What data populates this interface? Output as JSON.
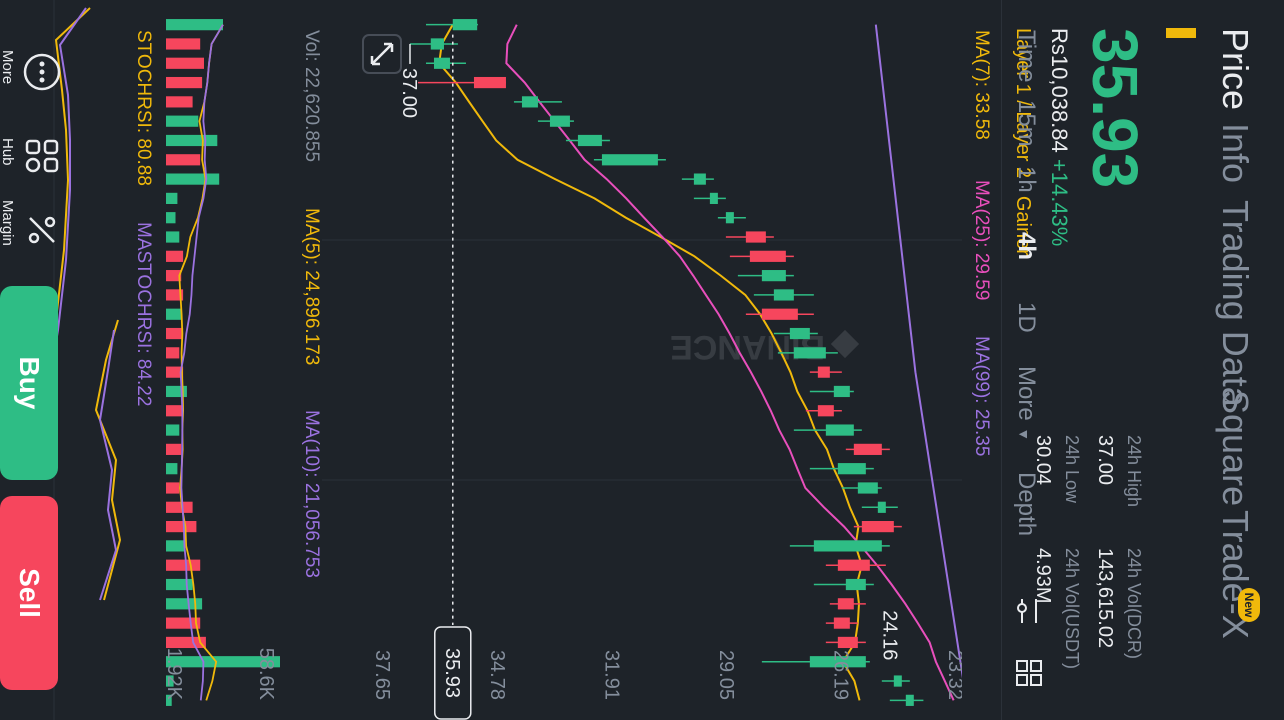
{
  "header": {
    "tabs": [
      "Price",
      "Info",
      "Trading Data",
      "Square",
      "Trade-X"
    ],
    "new_badge": "New",
    "price": "35.93",
    "fiat_price": "Rs10,038.84",
    "change": "+14.43%",
    "tags": [
      "Layer 1 / Layer 2",
      "Gainer"
    ],
    "stats": {
      "high_label": "24h High",
      "high": "37.00",
      "low_label": "24h Low",
      "low": "30.04",
      "vol_dcr_label": "24h Vol(DCR)",
      "vol_dcr": "143,615.02",
      "vol_usdt_label": "24h Vol(USDT)",
      "vol_usdt": "4.93M"
    }
  },
  "timeframes": [
    "Time",
    "15m",
    "1h",
    "4h",
    "1D",
    "More",
    "Depth"
  ],
  "active_timeframe": "4h",
  "indicators": {
    "ma7": "MA(7): 33.58",
    "ma25": "MA(25): 29.59",
    "ma99": "MA(99): 25.35",
    "vol": "Vol: 22,620.855",
    "ma5": "MA(5): 24,896.173",
    "ma10": "MA(10): 21,056.753",
    "stochrsi": "STOCHRSI: 80.88",
    "mastochrsi": "MASTOCHRSI: 84.22"
  },
  "chart_data": {
    "type": "candlestick",
    "price_axis_ticks": [
      "37.65",
      "34.78",
      "31.91",
      "29.05",
      "26.19",
      "23.32"
    ],
    "current_price_tag": "35.93",
    "high_marker": "37.00",
    "low_marker": "24.16",
    "volume_axis_ticks": [
      "58.6K",
      "1.92K"
    ],
    "watermark": "BINANCE",
    "candles": [
      {
        "o": 35.32,
        "c": 35.93,
        "h": 36.6,
        "l": 35.3
      },
      {
        "o": 36.15,
        "c": 36.48,
        "h": 37.0,
        "l": 35.8
      },
      {
        "o": 36.0,
        "c": 36.4,
        "h": 36.6,
        "l": 35.6
      },
      {
        "o": 35.4,
        "c": 34.6,
        "h": 36.8,
        "l": 34.6
      },
      {
        "o": 33.8,
        "c": 34.2,
        "h": 34.4,
        "l": 33.2
      },
      {
        "o": 33.0,
        "c": 33.5,
        "h": 33.8,
        "l": 32.9
      },
      {
        "o": 32.2,
        "c": 32.8,
        "h": 33.1,
        "l": 32.0
      },
      {
        "o": 30.8,
        "c": 32.2,
        "h": 32.4,
        "l": 30.6
      },
      {
        "o": 29.6,
        "c": 29.9,
        "h": 30.2,
        "l": 29.4
      },
      {
        "o": 29.3,
        "c": 29.5,
        "h": 29.9,
        "l": 29.1
      },
      {
        "o": 28.9,
        "c": 29.1,
        "h": 29.3,
        "l": 28.6
      },
      {
        "o": 28.6,
        "c": 28.1,
        "h": 29.1,
        "l": 27.9
      },
      {
        "o": 28.5,
        "c": 27.6,
        "h": 29.0,
        "l": 27.4
      },
      {
        "o": 27.6,
        "c": 28.2,
        "h": 28.8,
        "l": 27.4
      },
      {
        "o": 27.4,
        "c": 27.9,
        "h": 28.4,
        "l": 26.9
      },
      {
        "o": 28.2,
        "c": 27.3,
        "h": 28.6,
        "l": 26.9
      },
      {
        "o": 27.0,
        "c": 27.5,
        "h": 27.9,
        "l": 26.8
      },
      {
        "o": 26.6,
        "c": 27.4,
        "h": 27.8,
        "l": 26.3
      },
      {
        "o": 26.8,
        "c": 26.5,
        "h": 27.0,
        "l": 26.2
      },
      {
        "o": 26.0,
        "c": 26.4,
        "h": 27.0,
        "l": 25.9
      },
      {
        "o": 26.8,
        "c": 26.4,
        "h": 27.1,
        "l": 26.2
      },
      {
        "o": 25.9,
        "c": 26.6,
        "h": 27.4,
        "l": 25.7
      },
      {
        "o": 25.9,
        "c": 25.2,
        "h": 26.1,
        "l": 25.0
      },
      {
        "o": 25.6,
        "c": 26.3,
        "h": 27.0,
        "l": 25.4
      },
      {
        "o": 25.3,
        "c": 25.8,
        "h": 26.2,
        "l": 25.2
      },
      {
        "o": 25.1,
        "c": 25.3,
        "h": 25.7,
        "l": 24.8
      },
      {
        "o": 25.7,
        "c": 24.9,
        "h": 25.9,
        "l": 24.7
      },
      {
        "o": 25.2,
        "c": 26.9,
        "h": 27.5,
        "l": 25.0
      },
      {
        "o": 26.3,
        "c": 25.5,
        "h": 26.6,
        "l": 25.1
      },
      {
        "o": 25.6,
        "c": 26.1,
        "h": 26.9,
        "l": 25.4
      },
      {
        "o": 26.3,
        "c": 25.9,
        "h": 26.5,
        "l": 25.6
      },
      {
        "o": 26.4,
        "c": 26.0,
        "h": 26.6,
        "l": 25.8
      },
      {
        "o": 26.3,
        "c": 25.8,
        "h": 26.6,
        "l": 25.6
      },
      {
        "o": 25.6,
        "c": 27.0,
        "h": 28.2,
        "l": 25.5
      },
      {
        "o": 24.7,
        "c": 24.9,
        "h": 25.2,
        "l": 24.5
      },
      {
        "o": 24.4,
        "c": 24.6,
        "h": 25.0,
        "l": 24.16
      }
    ],
    "volume": [
      {
        "v": 15000,
        "up": true
      },
      {
        "v": 9000,
        "up": false
      },
      {
        "v": 10000,
        "up": false
      },
      {
        "v": 9500,
        "up": false
      },
      {
        "v": 7000,
        "up": false
      },
      {
        "v": 8500,
        "up": true
      },
      {
        "v": 13500,
        "up": true
      },
      {
        "v": 9000,
        "up": false
      },
      {
        "v": 14000,
        "up": true
      },
      {
        "v": 3000,
        "up": true
      },
      {
        "v": 2500,
        "up": true
      },
      {
        "v": 3500,
        "up": true
      },
      {
        "v": 4500,
        "up": false
      },
      {
        "v": 4000,
        "up": false
      },
      {
        "v": 4500,
        "up": false
      },
      {
        "v": 4000,
        "up": true
      },
      {
        "v": 4500,
        "up": false
      },
      {
        "v": 3500,
        "up": false
      },
      {
        "v": 4500,
        "up": false
      },
      {
        "v": 5500,
        "up": true
      },
      {
        "v": 4500,
        "up": false
      },
      {
        "v": 3500,
        "up": true
      },
      {
        "v": 4000,
        "up": false
      },
      {
        "v": 3000,
        "up": true
      },
      {
        "v": 3500,
        "up": false
      },
      {
        "v": 7000,
        "up": false
      },
      {
        "v": 8000,
        "up": false
      },
      {
        "v": 5000,
        "up": true
      },
      {
        "v": 9000,
        "up": false
      },
      {
        "v": 7000,
        "up": true
      },
      {
        "v": 9500,
        "up": true
      },
      {
        "v": 9000,
        "up": false
      },
      {
        "v": 10500,
        "up": false
      },
      {
        "v": 30000,
        "up": true
      },
      {
        "v": 2000,
        "up": true
      },
      {
        "v": 1500,
        "up": true
      }
    ]
  },
  "bottom_nav": {
    "more": "More",
    "hub": "Hub",
    "margin": "Margin",
    "buy": "Buy",
    "sell": "Sell"
  },
  "colors": {
    "up": "#2ebd85",
    "down": "#f6465d",
    "bg": "#1e2329",
    "accent": "#f0b90b",
    "ma7": "#f0b90b",
    "ma25": "#e84fbc",
    "ma99": "#9b72e0"
  }
}
